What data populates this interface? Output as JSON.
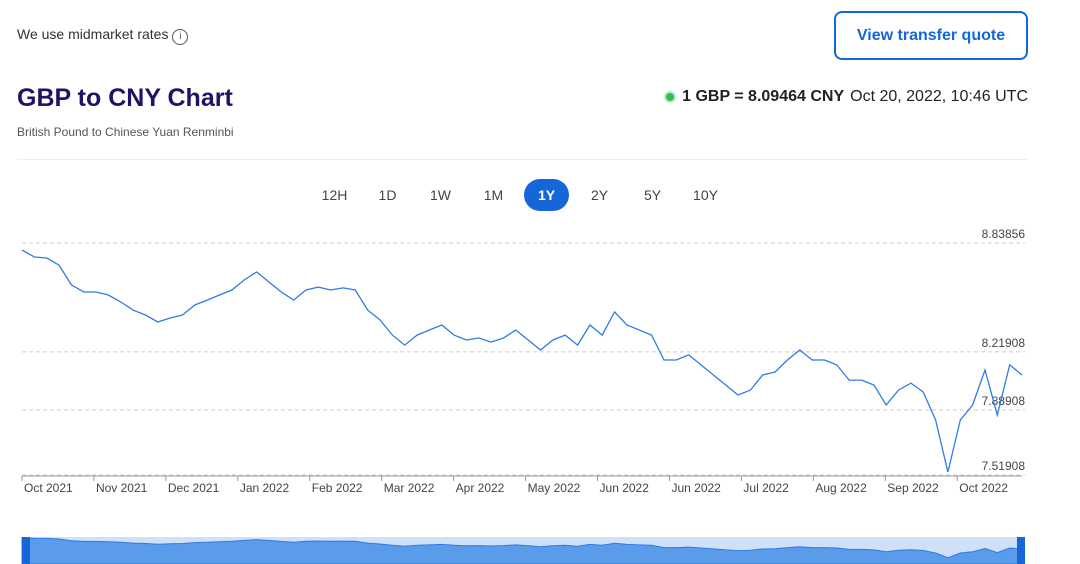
{
  "header": {
    "note": "We use midmarket rates",
    "button": "View transfer quote",
    "title": "GBP to CNY Chart",
    "subtitle": "British Pound to Chinese Yuan Renminbi",
    "rate": "1 GBP = 8.09464 CNY",
    "timestamp": "Oct 20, 2022, 10:46 UTC"
  },
  "ranges": {
    "options": [
      "12H",
      "1D",
      "1W",
      "1M",
      "1Y",
      "2Y",
      "5Y",
      "10Y"
    ],
    "selected": "1Y"
  },
  "chart_data": {
    "type": "line",
    "color": "#2f7be6",
    "grid": true,
    "x_labels": [
      "Oct 2021",
      "Nov 2021",
      "Dec 2021",
      "Jan 2022",
      "Feb 2022",
      "Mar 2022",
      "Apr 2022",
      "May 2022",
      "Jun 2022",
      "Jun 2022",
      "Jul 2022",
      "Aug 2022",
      "Sep 2022",
      "Oct 2022"
    ],
    "ylim": [
      7.51908,
      8.83856
    ],
    "yticks": [
      7.51908,
      7.88908,
      8.21908,
      8.83856
    ],
    "values": [
      8.799,
      8.759,
      8.753,
      8.713,
      8.6,
      8.56,
      8.56,
      8.543,
      8.503,
      8.457,
      8.429,
      8.389,
      8.412,
      8.429,
      8.486,
      8.514,
      8.543,
      8.571,
      8.628,
      8.674,
      8.617,
      8.56,
      8.514,
      8.571,
      8.588,
      8.571,
      8.583,
      8.571,
      8.457,
      8.401,
      8.315,
      8.258,
      8.315,
      8.344,
      8.372,
      8.315,
      8.287,
      8.298,
      8.275,
      8.298,
      8.344,
      8.287,
      8.23,
      8.287,
      8.315,
      8.258,
      8.372,
      8.315,
      8.446,
      8.372,
      8.344,
      8.315,
      8.173,
      8.173,
      8.202,
      8.145,
      8.088,
      8.031,
      7.974,
      8.002,
      8.088,
      8.105,
      8.173,
      8.23,
      8.173,
      8.173,
      8.145,
      8.059,
      8.059,
      8.031,
      7.917,
      8.002,
      8.042,
      7.991,
      7.832,
      7.536,
      7.832,
      7.917,
      8.116,
      7.86,
      8.145,
      8.088
    ]
  }
}
